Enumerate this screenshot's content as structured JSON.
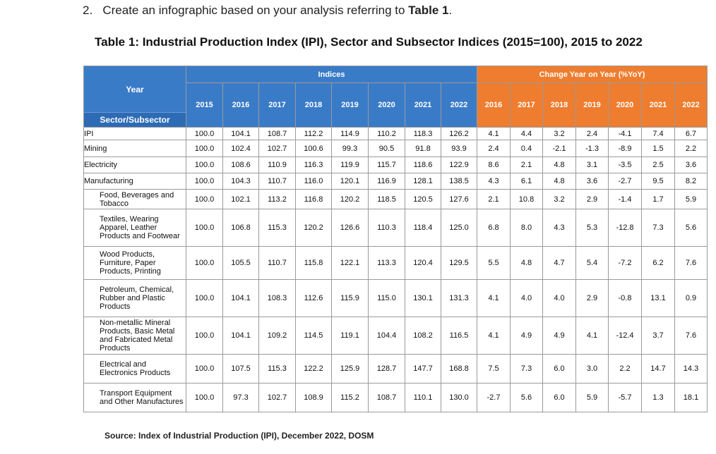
{
  "instruction": {
    "number": "2.",
    "text": "Create an infographic based on your analysis referring to ",
    "bold": "Table 1",
    "end": "."
  },
  "table_title": "Table 1: Industrial Production Index (IPI), Sector and Subsector Indices (2015=100), 2015 to 2022",
  "headers": {
    "year": "Year",
    "sector": "Sector/Subsector",
    "indices": "Indices",
    "change": "Change Year on Year (%YoY)",
    "index_years": [
      "2015",
      "2016",
      "2017",
      "2018",
      "2019",
      "2020",
      "2021",
      "2022"
    ],
    "change_years": [
      "2016",
      "2017",
      "2018",
      "2019",
      "2020",
      "2021",
      "2022"
    ]
  },
  "rows": [
    {
      "label": "IPI",
      "sub": false,
      "indices": [
        "100.0",
        "104.1",
        "108.7",
        "112.2",
        "114.9",
        "110.2",
        "118.3",
        "126.2"
      ],
      "changes": [
        "4.1",
        "4.4",
        "3.2",
        "2.4",
        "-4.1",
        "7.4",
        "6.7"
      ]
    },
    {
      "label": "Mining",
      "sub": false,
      "indices": [
        "100.0",
        "102.4",
        "102.7",
        "100.6",
        "99.3",
        "90.5",
        "91.8",
        "93.9"
      ],
      "changes": [
        "2.4",
        "0.4",
        "-2.1",
        "-1.3",
        "-8.9",
        "1.5",
        "2.2"
      ]
    },
    {
      "label": "Electricity",
      "sub": false,
      "indices": [
        "100.0",
        "108.6",
        "110.9",
        "116.3",
        "119.9",
        "115.7",
        "118.6",
        "122.9"
      ],
      "changes": [
        "8.6",
        "2.1",
        "4.8",
        "3.1",
        "-3.5",
        "2.5",
        "3.6"
      ]
    },
    {
      "label": "Manufacturing",
      "sub": false,
      "indices": [
        "100.0",
        "104.3",
        "110.7",
        "116.0",
        "120.1",
        "116.9",
        "128.1",
        "138.5"
      ],
      "changes": [
        "4.3",
        "6.1",
        "4.8",
        "3.6",
        "-2.7",
        "9.5",
        "8.2"
      ]
    },
    {
      "label": "Food, Beverages and Tobacco",
      "sub": true,
      "indices": [
        "100.0",
        "102.1",
        "113.2",
        "116.8",
        "120.2",
        "118.5",
        "120.5",
        "127.6"
      ],
      "changes": [
        "2.1",
        "10.8",
        "3.2",
        "2.9",
        "-1.4",
        "1.7",
        "5.9"
      ]
    },
    {
      "label": "Textiles, Wearing Apparel, Leather Products and Footwear",
      "sub": true,
      "indices": [
        "100.0",
        "106.8",
        "115.3",
        "120.2",
        "126.6",
        "110.3",
        "118.4",
        "125.0"
      ],
      "changes": [
        "6.8",
        "8.0",
        "4.3",
        "5.3",
        "-12.8",
        "7.3",
        "5.6"
      ]
    },
    {
      "label": "Wood Products, Furniture, Paper Products, Printing",
      "sub": true,
      "indices": [
        "100.0",
        "105.5",
        "110.7",
        "115.8",
        "122.1",
        "113.3",
        "120.4",
        "129.5"
      ],
      "changes": [
        "5.5",
        "4.8",
        "4.7",
        "5.4",
        "-7.2",
        "6.2",
        "7.6"
      ]
    },
    {
      "label": "Petroleum, Chemical, Rubber and Plastic Products",
      "sub": true,
      "indices": [
        "100.0",
        "104.1",
        "108.3",
        "112.6",
        "115.9",
        "115.0",
        "130.1",
        "131.3"
      ],
      "changes": [
        "4.1",
        "4.0",
        "4.0",
        "2.9",
        "-0.8",
        "13.1",
        "0.9"
      ]
    },
    {
      "label": "Non-metallic Mineral Products, Basic Metal and Fabricated Metal Products",
      "sub": true,
      "indices": [
        "100.0",
        "104.1",
        "109.2",
        "114.5",
        "119.1",
        "104.4",
        "108.2",
        "116.5"
      ],
      "changes": [
        "4.1",
        "4.9",
        "4.9",
        "4.1",
        "-12.4",
        "3.7",
        "7.6"
      ]
    },
    {
      "label": "Electrical and Electronics Products",
      "sub": true,
      "indices": [
        "100.0",
        "107.5",
        "115.3",
        "122.2",
        "125.9",
        "128.7",
        "147.7",
        "168.8"
      ],
      "changes": [
        "7.5",
        "7.3",
        "6.0",
        "3.0",
        "2.2",
        "14.7",
        "14.3"
      ]
    },
    {
      "label": "Transport Equipment and Other Manufactures",
      "sub": true,
      "indices": [
        "100.0",
        "97.3",
        "102.7",
        "108.9",
        "115.2",
        "108.7",
        "110.1",
        "130.0"
      ],
      "changes": [
        "-2.7",
        "5.6",
        "6.0",
        "5.9",
        "-5.7",
        "1.3",
        "18.1"
      ]
    }
  ],
  "source": "Source: Index of Industrial Production (IPI), December 2022, DOSM"
}
